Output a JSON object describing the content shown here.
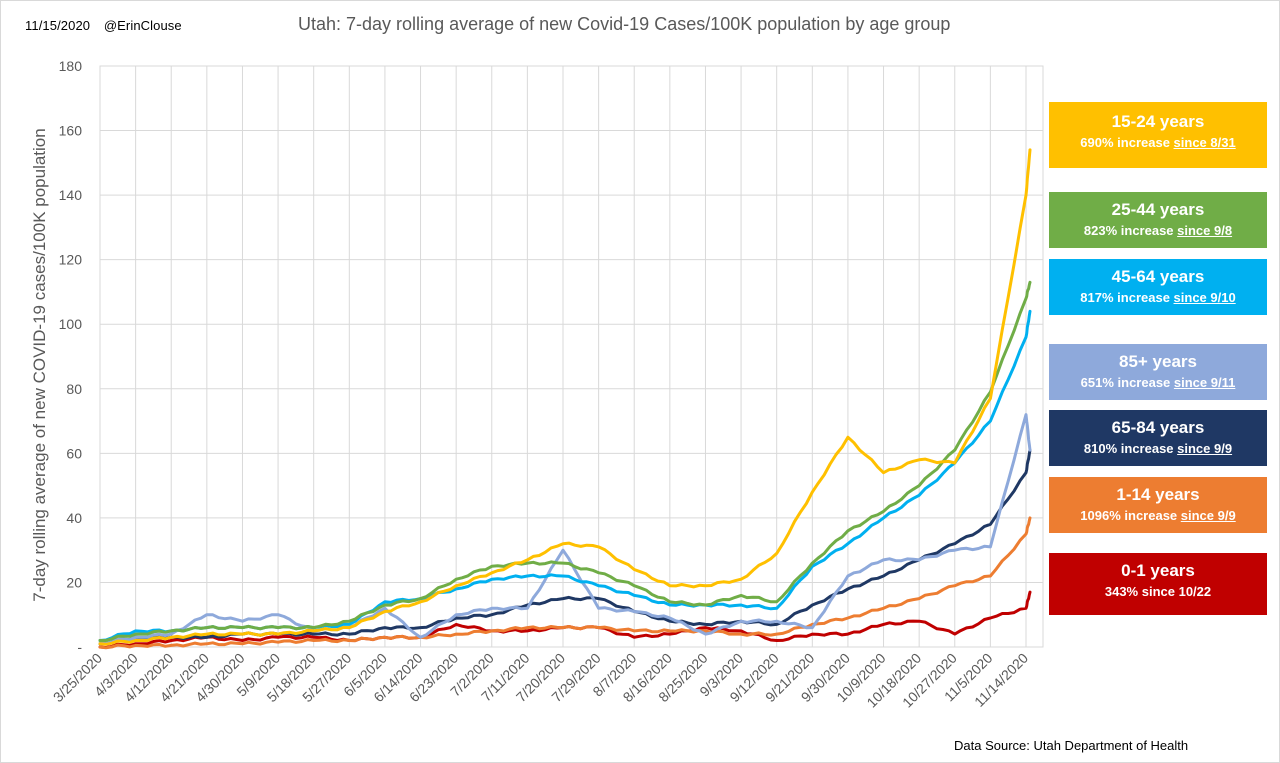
{
  "header": {
    "date": "11/15/2020",
    "author": "@ErinClouse",
    "title": "Utah: 7-day rolling average of new Covid-19 Cases/100K population by age group"
  },
  "footer": {
    "source": "Data Source: Utah Department of Health"
  },
  "legend": [
    {
      "name": "15-24 years",
      "pct": "690% increase",
      "since": "since 8/31",
      "since_underlined": true,
      "color": "#FFC000"
    },
    {
      "name": "25-44 years",
      "pct": "823% increase",
      "since": "since 9/8",
      "since_underlined": true,
      "color": "#70AD47"
    },
    {
      "name": "45-64 years",
      "pct": "817% increase",
      "since": "since 9/10",
      "since_underlined": true,
      "color": "#00B0F0"
    },
    {
      "name": "85+ years",
      "pct": "651% increase",
      "since": "since 9/11",
      "since_underlined": true,
      "color": "#8EA9DB"
    },
    {
      "name": "65-84 years",
      "pct": "810% increase",
      "since": "since 9/9",
      "since_underlined": true,
      "color": "#1F3864"
    },
    {
      "name": "1-14 years",
      "pct": "1096% increase",
      "since": "since 9/9",
      "since_underlined": true,
      "color": "#ED7D31"
    },
    {
      "name": "0-1 years",
      "pct": "343%",
      "since": "since 10/22",
      "since_underlined": false,
      "color": "#C00000"
    }
  ],
  "chart_data": {
    "type": "line",
    "title": "Utah: 7-day rolling average of new Covid-19 Cases/100K population by age group",
    "xlabel": "",
    "ylabel": "7-day rolling average of new COVID-19 cases/100K population",
    "ylim": [
      0,
      180
    ],
    "yticks": [
      0,
      20,
      40,
      60,
      80,
      100,
      120,
      140,
      160,
      180
    ],
    "ytick_labels": [
      "-",
      "20",
      "40",
      "60",
      "80",
      "100",
      "120",
      "140",
      "160",
      "180"
    ],
    "grid": true,
    "legend_placement": "right",
    "x_start": "3/25/2020",
    "x_end": "11/14/2020",
    "x_tick_labels": [
      "3/25/2020",
      "4/3/2020",
      "4/12/2020",
      "4/21/2020",
      "4/30/2020",
      "5/9/2020",
      "5/18/2020",
      "5/27/2020",
      "6/5/2020",
      "6/14/2020",
      "6/23/2020",
      "7/2/2020",
      "7/11/2020",
      "7/20/2020",
      "7/29/2020",
      "8/7/2020",
      "8/16/2020",
      "8/25/2020",
      "9/3/2020",
      "9/12/2020",
      "9/21/2020",
      "9/30/2020",
      "10/9/2020",
      "10/18/2020",
      "10/27/2020",
      "11/5/2020",
      "11/14/2020"
    ],
    "x_day_offsets": [
      0,
      9,
      18,
      27,
      36,
      45,
      54,
      63,
      72,
      81,
      90,
      99,
      108,
      117,
      126,
      135,
      144,
      153,
      162,
      171,
      180,
      189,
      198,
      207,
      216,
      225,
      234,
      235
    ],
    "series": [
      {
        "name": "15-24 years",
        "color": "#FFC000",
        "values": [
          1,
          2,
          3,
          4,
          4,
          4,
          5,
          6,
          11,
          14,
          19,
          23,
          27,
          32,
          31,
          24,
          19,
          19,
          21,
          29,
          48,
          65,
          54,
          58,
          57,
          77,
          140,
          154
        ]
      },
      {
        "name": "25-44 years",
        "color": "#70AD47",
        "values": [
          2,
          4,
          5,
          6,
          6,
          6,
          6,
          8,
          13,
          15,
          21,
          25,
          26,
          26,
          23,
          19,
          14,
          13,
          16,
          14,
          26,
          36,
          42,
          50,
          61,
          79,
          108,
          113
        ]
      },
      {
        "name": "45-64 years",
        "color": "#00B0F0",
        "values": [
          2,
          5,
          5,
          6,
          6,
          6,
          6,
          7,
          14,
          15,
          18,
          21,
          22,
          22,
          19,
          16,
          13,
          13,
          13,
          12,
          25,
          32,
          40,
          47,
          57,
          70,
          96,
          104
        ]
      },
      {
        "name": "85+ years",
        "color": "#8EA9DB",
        "values": [
          1,
          3,
          4,
          10,
          8,
          10,
          5,
          6,
          12,
          3,
          10,
          12,
          12,
          30,
          12,
          11,
          9,
          4,
          8,
          8,
          6,
          22,
          27,
          27,
          30,
          31,
          72,
          61
        ]
      },
      {
        "name": "65-84 years",
        "color": "#1F3864",
        "values": [
          1,
          3,
          3,
          3,
          4,
          4,
          4,
          4,
          6,
          6,
          9,
          10,
          13,
          15,
          15,
          11,
          8,
          7,
          8,
          7,
          13,
          18,
          22,
          27,
          32,
          38,
          54,
          61
        ]
      },
      {
        "name": "1-14 years",
        "color": "#ED7D31",
        "values": [
          0,
          0.5,
          0.5,
          1,
          1,
          1.5,
          2,
          2,
          3,
          3,
          4,
          5,
          6,
          6,
          6,
          5,
          5,
          5,
          4,
          4,
          7,
          9,
          12,
          15,
          19,
          22,
          35,
          40
        ]
      },
      {
        "name": "0-1 years",
        "color": "#C00000",
        "values": [
          0,
          1,
          2,
          3,
          2,
          3,
          3,
          2,
          3,
          3,
          7,
          5,
          5,
          6,
          6,
          3,
          4,
          6,
          5,
          2,
          4,
          4,
          7,
          8,
          4,
          9,
          12,
          17
        ]
      }
    ]
  }
}
